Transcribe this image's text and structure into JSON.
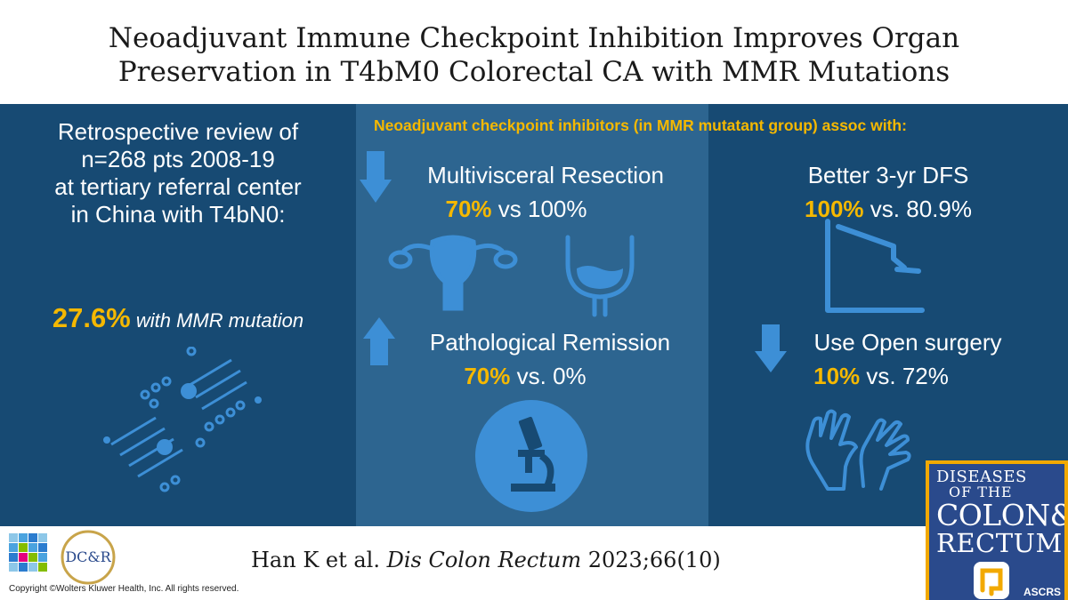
{
  "title": {
    "line1": "Neoadjuvant Immune Checkpoint Inhibition Improves Organ",
    "line2": "Preservation in T4bM0 Colorectal CA with MMR Mutations"
  },
  "left": {
    "line1": "Retrospective review of",
    "line2": "n=268 pts 2008-19",
    "line3": "at tertiary referral center",
    "line4": "in China with T4bN0:",
    "stat_value": "27.6%",
    "stat_label": "with MMR mutation"
  },
  "header": {
    "text": "Neoadjuvant checkpoint inhibitors (in MMR mutatant group) assoc with:"
  },
  "middle": {
    "resection": {
      "title": "Multivisceral Resection",
      "value": "70%",
      "comparison": "vs 100%",
      "direction": "down"
    },
    "remission": {
      "title": "Pathological Remission",
      "value": "70%",
      "comparison": "vs. 0%",
      "direction": "up"
    }
  },
  "right": {
    "dfs": {
      "title": "Better 3-yr DFS",
      "value": "100%",
      "comparison": "vs. 80.9%"
    },
    "open": {
      "title": "Use Open surgery",
      "value": "10%",
      "comparison": "vs. 72%",
      "direction": "down"
    }
  },
  "footer": {
    "cite_authors": "Han K et al.",
    "cite_journal": "Dis Colon Rectum",
    "cite_volume": "2023;66(10)",
    "copyright": "Copyright ©Wolters Kluwer Health, Inc. All rights reserved.",
    "journal_l1": "DISEASES",
    "journal_l2": "OF THE",
    "journal_l3": "COLON&",
    "journal_l4": "RECTUM",
    "journal_society": "ASCRS",
    "dcr_logo_text": "DC&R"
  },
  "colors": {
    "panel_dark": "#174a73",
    "panel_mid": "#2d6590",
    "icon_blue": "#3d8fd6",
    "highlight": "#f5b800"
  }
}
